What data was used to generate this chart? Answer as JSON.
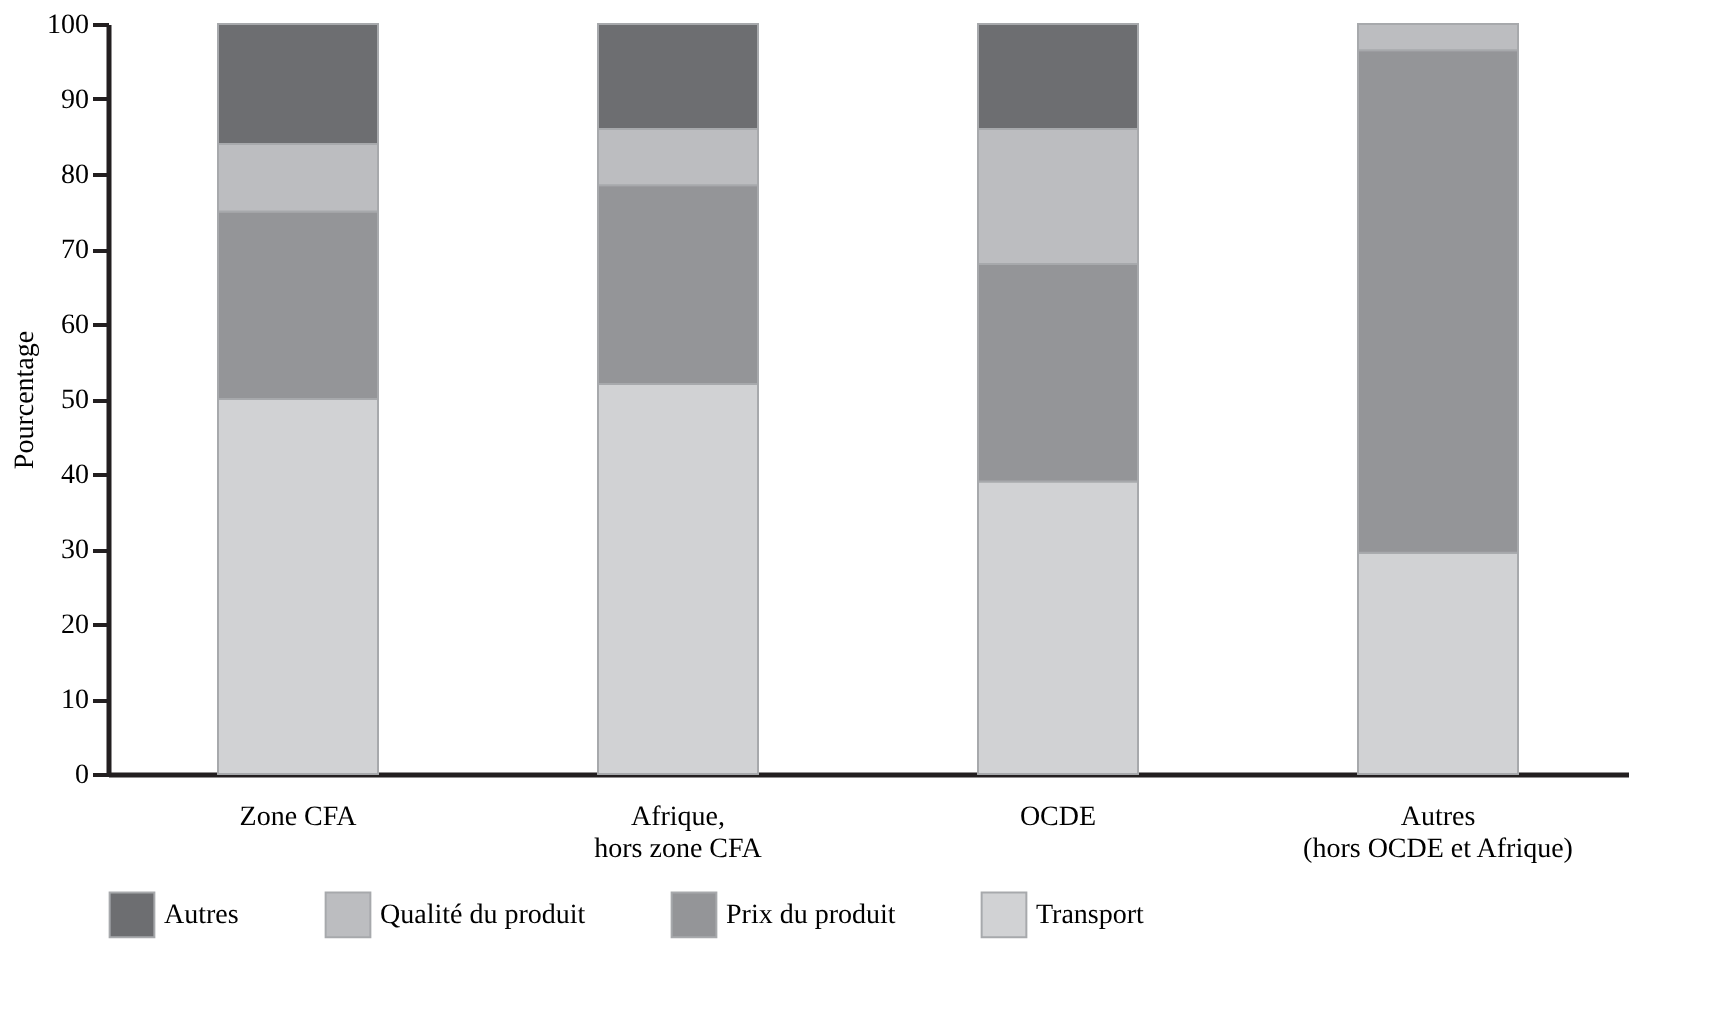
{
  "chart_data": {
    "type": "bar",
    "stacked": true,
    "ylabel": "Pourcentage",
    "categories": [
      "Zone CFA",
      "Afrique,\nhors zone CFA",
      "OCDE",
      "Autres\n(hors OCDE et Afrique)"
    ],
    "series": [
      {
        "name": "Transport",
        "color": "#d1d2d4",
        "values": [
          50,
          52,
          39,
          29.5
        ]
      },
      {
        "name": "Prix du produit",
        "color": "#949598",
        "values": [
          25,
          26.5,
          29,
          67
        ]
      },
      {
        "name": "Qualité du produit",
        "color": "#bcbdc0",
        "values": [
          9,
          7.5,
          18,
          3.5
        ]
      },
      {
        "name": "Autres",
        "color": "#6d6e71",
        "values": [
          16,
          14,
          14,
          null
        ]
      }
    ],
    "ylim": [
      0,
      100
    ],
    "yticks": [
      0,
      10,
      20,
      30,
      40,
      50,
      60,
      70,
      80,
      90,
      100
    ],
    "grid": false,
    "legend": "bottom"
  }
}
